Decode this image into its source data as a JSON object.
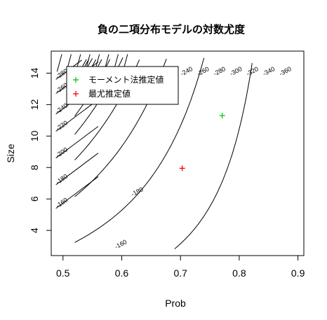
{
  "chart_data": {
    "type": "contour",
    "title": "負の二項分布モデルの対数尤度",
    "xlabel": "Prob",
    "ylabel": "Size",
    "xlim": [
      0.48,
      0.91
    ],
    "ylim": [
      2.4,
      15.4
    ],
    "x_ticks": [
      "0.5",
      "0.6",
      "0.7",
      "0.8",
      "0.9"
    ],
    "y_ticks": [
      "4",
      "6",
      "8",
      "10",
      "12",
      "14"
    ],
    "contour_levels": [
      -160,
      -180,
      -200,
      -220,
      -240,
      -260,
      -280,
      -300,
      -320,
      -340,
      -360
    ],
    "points": [
      {
        "name": "モーメント法推定値",
        "x": 0.771,
        "y": 11.3,
        "color": "#00cc00"
      },
      {
        "name": "最尤推定値",
        "x": 0.703,
        "y": 7.95,
        "color": "#ff0000"
      }
    ],
    "legend": {
      "position": "top-left",
      "entries": [
        {
          "label": "モーメント法推定値",
          "color": "#00cc00"
        },
        {
          "label": "最尤推定値",
          "color": "#ff0000"
        }
      ]
    }
  }
}
